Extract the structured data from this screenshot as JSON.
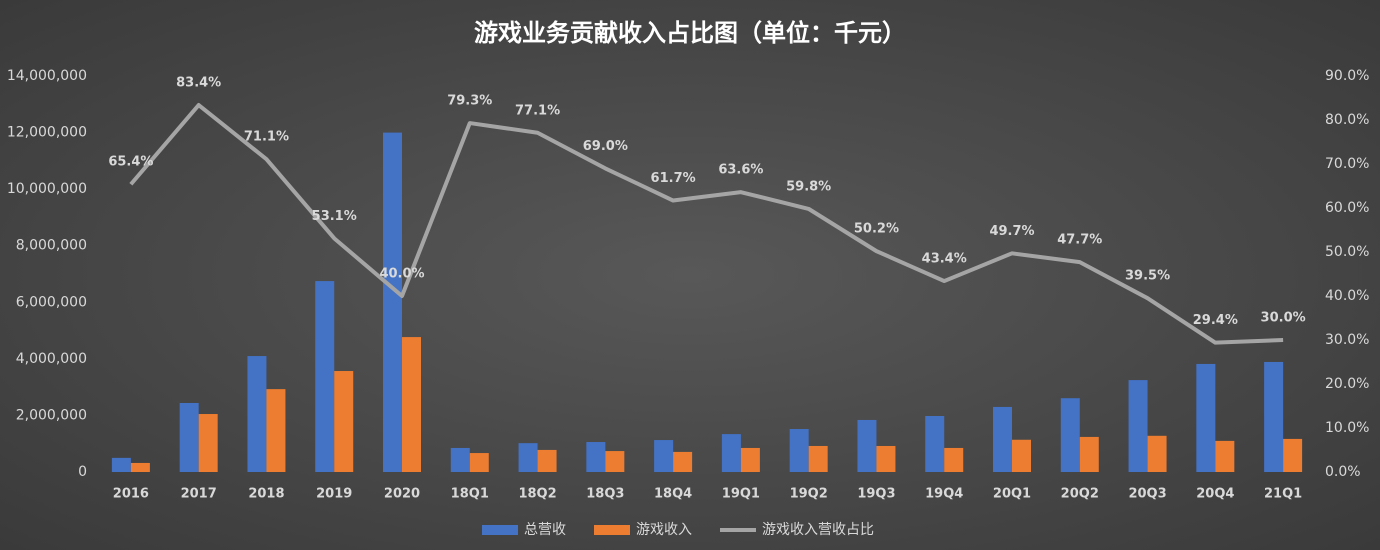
{
  "chart_data": {
    "type": "bar-line",
    "title": "游戏业务贡献收入占比图（单位：千元）",
    "categories": [
      "2016",
      "2017",
      "2018",
      "2019",
      "2020",
      "18Q1",
      "18Q2",
      "18Q3",
      "18Q4",
      "19Q1",
      "19Q2",
      "19Q3",
      "19Q4",
      "20Q1",
      "20Q2",
      "20Q3",
      "20Q4",
      "21Q1"
    ],
    "series": [
      {
        "name": "总营收",
        "color": "#4472c4",
        "type": "bar",
        "values": [
          500000,
          2440000,
          4100000,
          6750000,
          12000000,
          850000,
          1020000,
          1060000,
          1130000,
          1340000,
          1520000,
          1840000,
          1980000,
          2300000,
          2610000,
          3250000,
          3820000,
          3890000
        ]
      },
      {
        "name": "游戏收入",
        "color": "#ed7d31",
        "type": "bar",
        "values": [
          320000,
          2050000,
          2930000,
          3570000,
          4770000,
          670000,
          780000,
          740000,
          710000,
          850000,
          920000,
          920000,
          850000,
          1140000,
          1240000,
          1280000,
          1100000,
          1170000
        ]
      },
      {
        "name": "游戏收入营收占比",
        "color": "#a5a5a5",
        "type": "line",
        "axis": "y2",
        "values": [
          65.4,
          83.4,
          71.1,
          53.1,
          40.0,
          79.3,
          77.1,
          69.0,
          61.7,
          63.6,
          59.8,
          50.2,
          43.4,
          49.7,
          47.7,
          39.5,
          29.4,
          30.0
        ],
        "value_labels": [
          "65.4%",
          "83.4%",
          "71.1%",
          "53.1%",
          "40.0%",
          "79.3%",
          "77.1%",
          "69.0%",
          "61.7%",
          "63.6%",
          "59.8%",
          "50.2%",
          "43.4%",
          "49.7%",
          "47.7%",
          "39.5%",
          "29.4%",
          "30.0%"
        ]
      }
    ],
    "ylim": [
      0,
      14000000
    ],
    "yticks": [
      0,
      {
        "value": 2000000,
        "label": "2,000,000"
      },
      {
        "value": 4000000,
        "label": "4,000,000"
      },
      {
        "value": 6000000,
        "label": "6,000,000"
      },
      {
        "value": 8000000,
        "label": "8,000,000"
      },
      {
        "value": 10000000,
        "label": "10,000,000"
      },
      {
        "value": 12000000,
        "label": "12,000,000"
      },
      {
        "value": 14000000,
        "label": "14,000,000"
      }
    ],
    "y2lim": [
      0,
      90
    ],
    "y2ticks": [
      {
        "value": 0,
        "label": "0.0%"
      },
      {
        "value": 10,
        "label": "10.0%"
      },
      {
        "value": 20,
        "label": "20.0%"
      },
      {
        "value": 30,
        "label": "30.0%"
      },
      {
        "value": 40,
        "label": "40.0%"
      },
      {
        "value": 50,
        "label": "50.0%"
      },
      {
        "value": 60,
        "label": "60.0%"
      },
      {
        "value": 70,
        "label": "70.0%"
      },
      {
        "value": 80,
        "label": "80.0%"
      },
      {
        "value": 90,
        "label": "90.0%"
      }
    ],
    "legend": "bottom"
  }
}
